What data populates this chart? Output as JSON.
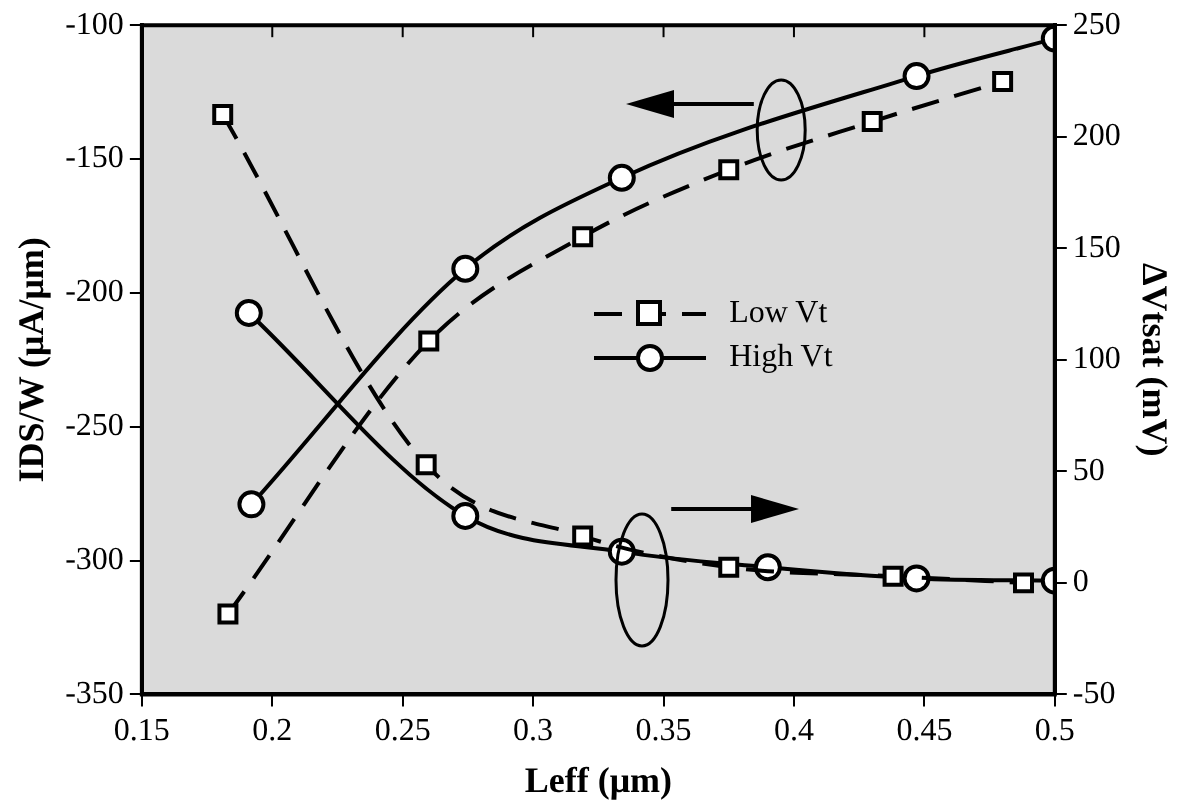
{
  "chart_data": {
    "type": "line",
    "xlabel": "Leff (μm)",
    "ylabel": "IDS/W (μA/μm)",
    "y2label": "ΔVtsat (mV)",
    "xlim": [
      0.15,
      0.5
    ],
    "xticks": [
      0.15,
      0.2,
      0.25,
      0.3,
      0.35,
      0.4,
      0.45,
      0.5
    ],
    "ylim": [
      -350,
      -100
    ],
    "yticks": [
      -350,
      -300,
      -250,
      -200,
      -150,
      -100
    ],
    "y2lim": [
      -50,
      250
    ],
    "y2ticks": [
      -50,
      0,
      50,
      100,
      150,
      200,
      250
    ],
    "grid": false,
    "legend": "center right",
    "series": [
      {
        "name": "Low Vt",
        "color": "#000000",
        "marker": "square",
        "line_style": "dashed",
        "x": [
          0.183,
          0.26,
          0.319,
          0.375,
          0.43,
          0.48
        ],
        "values": [
          -320,
          -218,
          -179,
          -154,
          -136,
          -121
        ]
      },
      {
        "name": "High Vt",
        "color": "#000000",
        "marker": "circle",
        "line_style": "solid",
        "x": [
          0.192,
          0.274,
          0.334,
          0.447,
          0.5
        ],
        "values": [
          -279,
          -191,
          -157,
          -119,
          -105
        ]
      },
      {
        "color": "#000000",
        "marker": "square",
        "line_style": "dashed",
        "axis": "y2",
        "x": [
          0.181,
          0.259,
          0.319,
          0.375,
          0.438,
          0.488
        ],
        "values": [
          210,
          53,
          21,
          7,
          3,
          0
        ]
      },
      {
        "color": "#000000",
        "marker": "circle",
        "line_style": "solid",
        "axis": "y2",
        "x": [
          0.191,
          0.274,
          0.334,
          0.39,
          0.447,
          0.5
        ],
        "values": [
          121,
          30,
          14,
          7,
          2,
          1
        ]
      }
    ]
  }
}
